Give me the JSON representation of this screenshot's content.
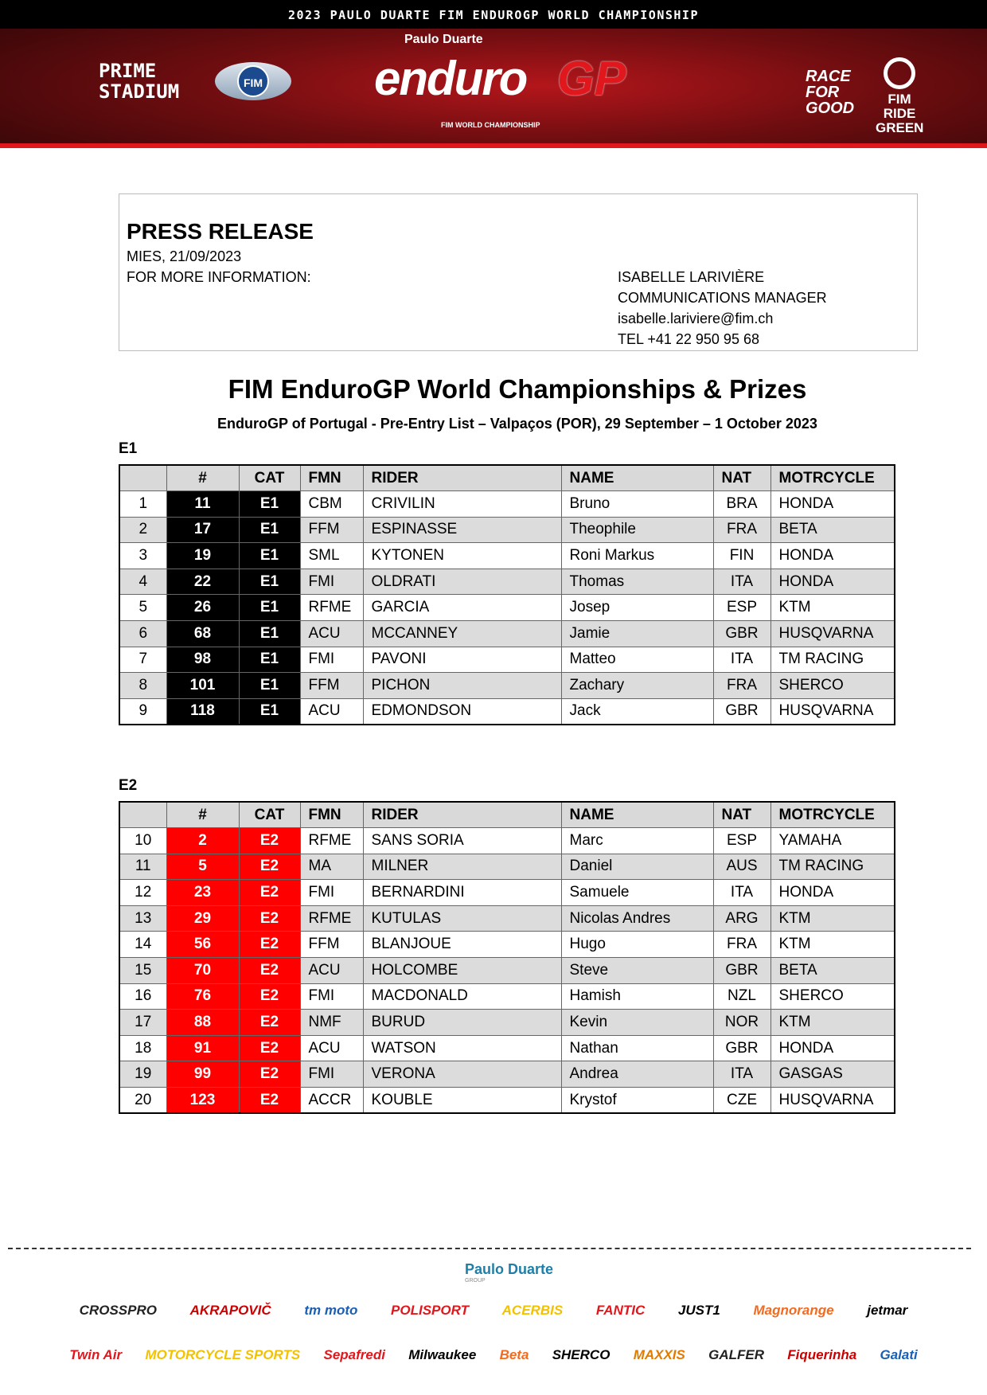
{
  "banner": {
    "top_title": "2023 PAULO DUARTE FIM ENDUROGP WORLD CHAMPIONSHIP",
    "left_logo": "PRIME STADIUM",
    "fim_logo": "FIM",
    "main_logo_sponsor": "Paulo Duarte",
    "main_logo_enduro": "enduro",
    "main_logo_gp": "GP",
    "main_logo_sub": "FIM WORLD CHAMPIONSHIP",
    "race_logo": "RACE FOR GOOD",
    "green_logo": "FIM RIDE GREEN"
  },
  "press": {
    "heading": "PRESS RELEASE",
    "date": "MIES, 21/09/2023",
    "more_info": "FOR MORE INFORMATION:",
    "contact": [
      "ISABELLE LARIVIÈRE",
      "COMMUNICATIONS MANAGER",
      "isabelle.lariviere@fim.ch",
      "TEL +41 22 950 95 68"
    ]
  },
  "title": "FIM EnduroGP World Championships & Prizes",
  "subtitle": "EnduroGP of Portugal - Pre-Entry List – Valpaços (POR), 29 September – 1 October 2023",
  "columns": [
    "",
    "#",
    "CAT",
    "FMN",
    "RIDER",
    "NAME",
    "NAT",
    "MOTRCYCLE"
  ],
  "e1": {
    "label": "E1",
    "accent": "#000000",
    "rows": [
      [
        "1",
        "11",
        "E1",
        "CBM",
        "CRIVILIN",
        "Bruno",
        "BRA",
        "HONDA"
      ],
      [
        "2",
        "17",
        "E1",
        "FFM",
        "ESPINASSE",
        "Theophile",
        "FRA",
        "BETA"
      ],
      [
        "3",
        "19",
        "E1",
        "SML",
        "KYTONEN",
        "Roni Markus",
        "FIN",
        "HONDA"
      ],
      [
        "4",
        "22",
        "E1",
        "FMI",
        "OLDRATI",
        "Thomas",
        "ITA",
        "HONDA"
      ],
      [
        "5",
        "26",
        "E1",
        "RFME",
        "GARCIA",
        "Josep",
        "ESP",
        "KTM"
      ],
      [
        "6",
        "68",
        "E1",
        "ACU",
        "MCCANNEY",
        "Jamie",
        "GBR",
        "HUSQVARNA"
      ],
      [
        "7",
        "98",
        "E1",
        "FMI",
        "PAVONI",
        "Matteo",
        "ITA",
        "TM RACING"
      ],
      [
        "8",
        "101",
        "E1",
        "FFM",
        "PICHON",
        "Zachary",
        "FRA",
        "SHERCO"
      ],
      [
        "9",
        "118",
        "E1",
        "ACU",
        "EDMONDSON",
        "Jack",
        "GBR",
        "HUSQVARNA"
      ]
    ]
  },
  "e2": {
    "label": "E2",
    "accent": "#ff0000",
    "rows": [
      [
        "10",
        "2",
        "E2",
        "RFME",
        "SANS SORIA",
        "Marc",
        "ESP",
        "YAMAHA"
      ],
      [
        "11",
        "5",
        "E2",
        "MA",
        "MILNER",
        "Daniel",
        "AUS",
        "TM RACING"
      ],
      [
        "12",
        "23",
        "E2",
        "FMI",
        "BERNARDINI",
        "Samuele",
        "ITA",
        "HONDA"
      ],
      [
        "13",
        "29",
        "E2",
        "RFME",
        "KUTULAS",
        "Nicolas Andres",
        "ARG",
        "KTM"
      ],
      [
        "14",
        "56",
        "E2",
        "FFM",
        "BLANJOUE",
        "Hugo",
        "FRA",
        "KTM"
      ],
      [
        "15",
        "70",
        "E2",
        "ACU",
        "HOLCOMBE",
        "Steve",
        "GBR",
        "BETA"
      ],
      [
        "16",
        "76",
        "E2",
        "FMI",
        "MACDONALD",
        "Hamish",
        "NZL",
        "SHERCO"
      ],
      [
        "17",
        "88",
        "E2",
        "NMF",
        "BURUD",
        "Kevin",
        "NOR",
        "KTM"
      ],
      [
        "18",
        "91",
        "E2",
        "ACU",
        "WATSON",
        "Nathan",
        "GBR",
        "HONDA"
      ],
      [
        "19",
        "99",
        "E2",
        "FMI",
        "VERONA",
        "Andrea",
        "ITA",
        "GASGAS"
      ],
      [
        "20",
        "123",
        "E2",
        "ACCR",
        "KOUBLE",
        "Krystof",
        "CZE",
        "HUSQVARNA"
      ]
    ]
  },
  "footer": {
    "main_sponsor": "Paulo Duarte",
    "main_sponsor_sub": "GROUP",
    "row1": [
      "CROSSPRO",
      "AKRAPOVIČ",
      "tm moto",
      "POLISPORT",
      "ACERBIS",
      "FANTIC",
      "JUST1",
      "Magnorange",
      "jetmar"
    ],
    "row2": [
      "Twin Air",
      "MOTORCYCLE SPORTS",
      "Sepafredi",
      "Milwaukee",
      "Beta",
      "SHERCO",
      "MAXXIS",
      "GALFER",
      "Fiquerinha",
      "Galati"
    ]
  }
}
